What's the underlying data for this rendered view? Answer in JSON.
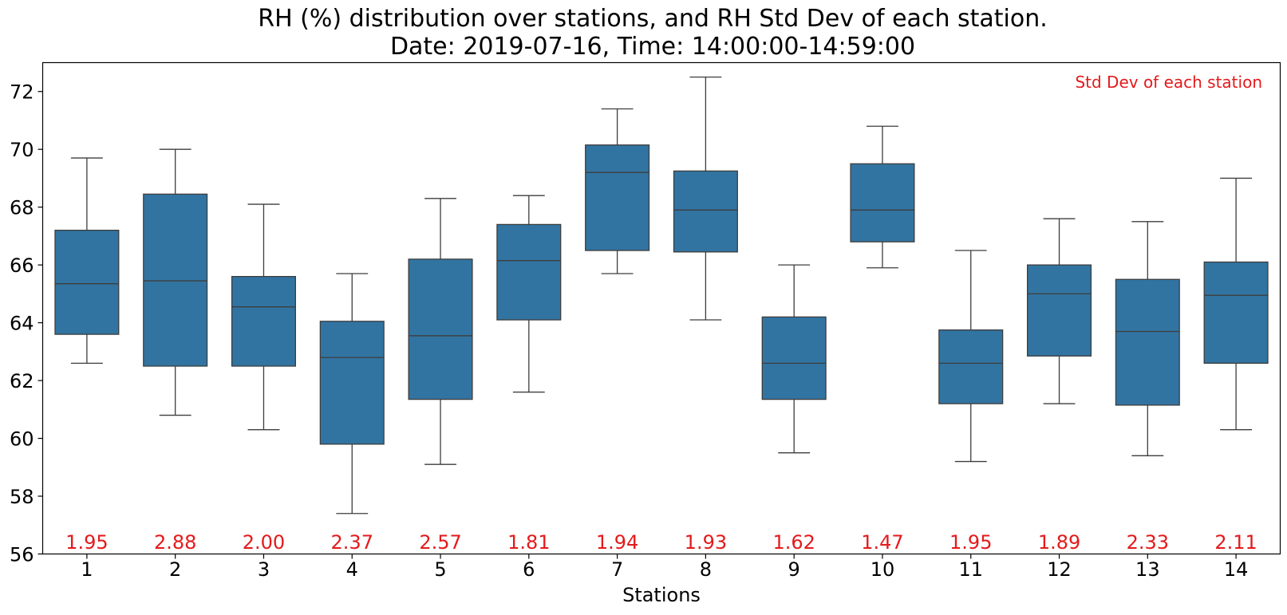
{
  "chart_data": {
    "type": "box",
    "title_line1": "RH (%) distribution over stations, and RH Std Dev of each station.",
    "title_line2": "Date: 2019-07-16, Time: 14:00:00-14:59:00",
    "xlabel": "Stations",
    "ylabel": "",
    "ylim": [
      56,
      73
    ],
    "yticks": [
      56,
      58,
      60,
      62,
      64,
      66,
      68,
      70,
      72
    ],
    "categories": [
      "1",
      "2",
      "3",
      "4",
      "5",
      "6",
      "7",
      "8",
      "9",
      "10",
      "11",
      "12",
      "13",
      "14"
    ],
    "boxes": [
      {
        "whislo": 62.6,
        "q1": 63.6,
        "med": 65.35,
        "q3": 67.2,
        "whishi": 69.7
      },
      {
        "whislo": 60.8,
        "q1": 62.5,
        "med": 65.45,
        "q3": 68.45,
        "whishi": 70.0
      },
      {
        "whislo": 60.3,
        "q1": 62.5,
        "med": 64.55,
        "q3": 65.6,
        "whishi": 68.1
      },
      {
        "whislo": 57.4,
        "q1": 59.8,
        "med": 62.8,
        "q3": 64.05,
        "whishi": 65.7
      },
      {
        "whislo": 59.1,
        "q1": 61.35,
        "med": 63.55,
        "q3": 66.2,
        "whishi": 68.3
      },
      {
        "whislo": 61.6,
        "q1": 64.1,
        "med": 66.15,
        "q3": 67.4,
        "whishi": 68.4
      },
      {
        "whislo": 65.7,
        "q1": 66.5,
        "med": 69.2,
        "q3": 70.15,
        "whishi": 71.4
      },
      {
        "whislo": 64.1,
        "q1": 66.45,
        "med": 67.9,
        "q3": 69.25,
        "whishi": 72.5
      },
      {
        "whislo": 59.5,
        "q1": 61.35,
        "med": 62.6,
        "q3": 64.2,
        "whishi": 66.0
      },
      {
        "whislo": 65.9,
        "q1": 66.8,
        "med": 67.9,
        "q3": 69.5,
        "whishi": 70.8
      },
      {
        "whislo": 59.2,
        "q1": 61.2,
        "med": 62.6,
        "q3": 63.75,
        "whishi": 66.5
      },
      {
        "whislo": 61.2,
        "q1": 62.85,
        "med": 65.0,
        "q3": 66.0,
        "whishi": 67.6
      },
      {
        "whislo": 59.4,
        "q1": 61.15,
        "med": 63.7,
        "q3": 65.5,
        "whishi": 67.5
      },
      {
        "whislo": 60.3,
        "q1": 62.6,
        "med": 64.95,
        "q3": 66.1,
        "whishi": 69.0
      }
    ],
    "std_devs": [
      "1.95",
      "2.88",
      "2.00",
      "2.37",
      "2.57",
      "1.81",
      "1.94",
      "1.93",
      "1.62",
      "1.47",
      "1.95",
      "1.89",
      "2.33",
      "2.11"
    ],
    "annotation": "Std Dev of each station",
    "grid": false,
    "colors": {
      "box_fill": "#3274a1",
      "box_edge": "#3d3d3d",
      "std_text": "#e41a1c",
      "axis": "#000000"
    }
  }
}
